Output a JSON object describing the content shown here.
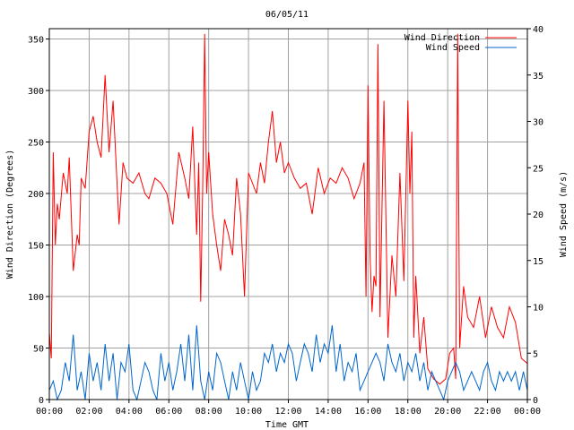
{
  "chart_data": {
    "type": "line",
    "title": "06/05/11",
    "xlabel": "Time GMT",
    "ylabel_left": "Wind Direction (Degrees)",
    "ylabel_right": "Wind Speed (m/s)",
    "xlim": [
      0,
      24
    ],
    "ylim_left": [
      0,
      360
    ],
    "ylim_right": [
      0,
      40
    ],
    "x_tick_labels": [
      "00:00",
      "02:00",
      "04:00",
      "06:00",
      "08:00",
      "10:00",
      "12:00",
      "14:00",
      "16:00",
      "18:00",
      "20:00",
      "22:00",
      "00:00"
    ],
    "y_left_tick_labels": [
      "0",
      "50",
      "100",
      "150",
      "200",
      "250",
      "300",
      "350"
    ],
    "y_right_tick_labels": [
      "0",
      "5",
      "10",
      "15",
      "20",
      "25",
      "30",
      "35",
      "40"
    ],
    "grid": true,
    "legend_position": "top-right",
    "series": [
      {
        "name": "Wind Direction",
        "axis": "left",
        "color": "#ff0000",
        "x": [
          0,
          0.1,
          0.2,
          0.3,
          0.4,
          0.5,
          0.7,
          0.9,
          1.0,
          1.2,
          1.4,
          1.5,
          1.6,
          1.8,
          2.0,
          2.2,
          2.4,
          2.6,
          2.8,
          3.0,
          3.2,
          3.3,
          3.5,
          3.7,
          3.9,
          4.2,
          4.5,
          4.8,
          5.0,
          5.3,
          5.6,
          5.9,
          6.2,
          6.5,
          6.8,
          7.0,
          7.2,
          7.4,
          7.5,
          7.6,
          7.7,
          7.8,
          7.9,
          8.0,
          8.2,
          8.4,
          8.6,
          8.8,
          9.0,
          9.2,
          9.4,
          9.6,
          9.8,
          10.0,
          10.2,
          10.4,
          10.6,
          10.8,
          11.0,
          11.2,
          11.4,
          11.6,
          11.8,
          12.0,
          12.3,
          12.6,
          12.9,
          13.2,
          13.5,
          13.8,
          14.1,
          14.4,
          14.7,
          15.0,
          15.3,
          15.6,
          15.8,
          15.9,
          16.0,
          16.1,
          16.2,
          16.3,
          16.4,
          16.5,
          16.6,
          16.8,
          17.0,
          17.2,
          17.4,
          17.6,
          17.8,
          18.0,
          18.1,
          18.2,
          18.3,
          18.4,
          18.6,
          18.8,
          19.0,
          19.3,
          19.6,
          19.9,
          20.1,
          20.3,
          20.4,
          20.5,
          20.6,
          20.8,
          21.0,
          21.3,
          21.6,
          21.9,
          22.2,
          22.5,
          22.8,
          23.1,
          23.4,
          23.7,
          24.0
        ],
        "values": [
          65,
          40,
          240,
          150,
          190,
          175,
          220,
          200,
          235,
          125,
          160,
          150,
          215,
          205,
          260,
          275,
          250,
          235,
          315,
          240,
          290,
          250,
          170,
          230,
          215,
          210,
          220,
          200,
          195,
          215,
          210,
          200,
          170,
          240,
          215,
          195,
          265,
          160,
          230,
          95,
          205,
          355,
          200,
          240,
          180,
          150,
          125,
          175,
          160,
          140,
          215,
          180,
          100,
          220,
          210,
          200,
          230,
          210,
          250,
          280,
          230,
          250,
          220,
          230,
          215,
          205,
          210,
          180,
          225,
          200,
          215,
          210,
          225,
          215,
          195,
          210,
          230,
          100,
          305,
          140,
          85,
          120,
          110,
          345,
          80,
          290,
          60,
          140,
          100,
          220,
          115,
          290,
          200,
          260,
          60,
          120,
          45,
          80,
          30,
          20,
          15,
          20,
          45,
          50,
          20,
          355,
          50,
          110,
          80,
          70,
          100,
          60,
          90,
          70,
          60,
          90,
          75,
          40,
          35
        ],
        "values_max": 360
      },
      {
        "name": "Wind Speed",
        "axis": "right",
        "color": "#0066cc",
        "x": [
          0,
          0.2,
          0.4,
          0.6,
          0.8,
          1.0,
          1.2,
          1.4,
          1.6,
          1.8,
          2.0,
          2.2,
          2.4,
          2.6,
          2.8,
          3.0,
          3.2,
          3.4,
          3.6,
          3.8,
          4.0,
          4.2,
          4.4,
          4.6,
          4.8,
          5.0,
          5.2,
          5.4,
          5.6,
          5.8,
          6.0,
          6.2,
          6.4,
          6.6,
          6.8,
          7.0,
          7.2,
          7.4,
          7.6,
          7.8,
          8.0,
          8.2,
          8.4,
          8.6,
          8.8,
          9.0,
          9.2,
          9.4,
          9.6,
          9.8,
          10.0,
          10.2,
          10.4,
          10.6,
          10.8,
          11.0,
          11.2,
          11.4,
          11.6,
          11.8,
          12.0,
          12.2,
          12.4,
          12.6,
          12.8,
          13.0,
          13.2,
          13.4,
          13.6,
          13.8,
          14.0,
          14.2,
          14.4,
          14.6,
          14.8,
          15.0,
          15.2,
          15.4,
          15.6,
          15.8,
          16.0,
          16.2,
          16.4,
          16.6,
          16.8,
          17.0,
          17.2,
          17.4,
          17.6,
          17.8,
          18.0,
          18.2,
          18.4,
          18.6,
          18.8,
          19.0,
          19.2,
          19.4,
          19.6,
          19.8,
          20.0,
          20.2,
          20.4,
          20.6,
          20.8,
          21.0,
          21.2,
          21.4,
          21.6,
          21.8,
          22.0,
          22.2,
          22.4,
          22.6,
          22.8,
          23.0,
          23.2,
          23.4,
          23.6,
          23.8,
          24.0
        ],
        "values": [
          1,
          2,
          0,
          1,
          4,
          2,
          7,
          1,
          3,
          0,
          5,
          2,
          4,
          1,
          6,
          2,
          5,
          0,
          4,
          3,
          6,
          1,
          0,
          2,
          4,
          3,
          1,
          0,
          5,
          2,
          4,
          1,
          3,
          6,
          2,
          7,
          1,
          8,
          2,
          0,
          3,
          1,
          5,
          4,
          2,
          0,
          3,
          1,
          4,
          2,
          0,
          3,
          1,
          2,
          5,
          4,
          6,
          3,
          5,
          4,
          6,
          5,
          2,
          4,
          6,
          5,
          3,
          7,
          4,
          6,
          5,
          8,
          3,
          6,
          2,
          4,
          3,
          5,
          1,
          2,
          3,
          4,
          5,
          4,
          2,
          6,
          4,
          3,
          5,
          2,
          4,
          3,
          5,
          2,
          4,
          1,
          3,
          2,
          1,
          0,
          2,
          3,
          4,
          3,
          1,
          2,
          3,
          2,
          1,
          3,
          4,
          2,
          1,
          3,
          2,
          3,
          2,
          3,
          1,
          3,
          1
        ],
        "values_max": 40
      }
    ]
  }
}
